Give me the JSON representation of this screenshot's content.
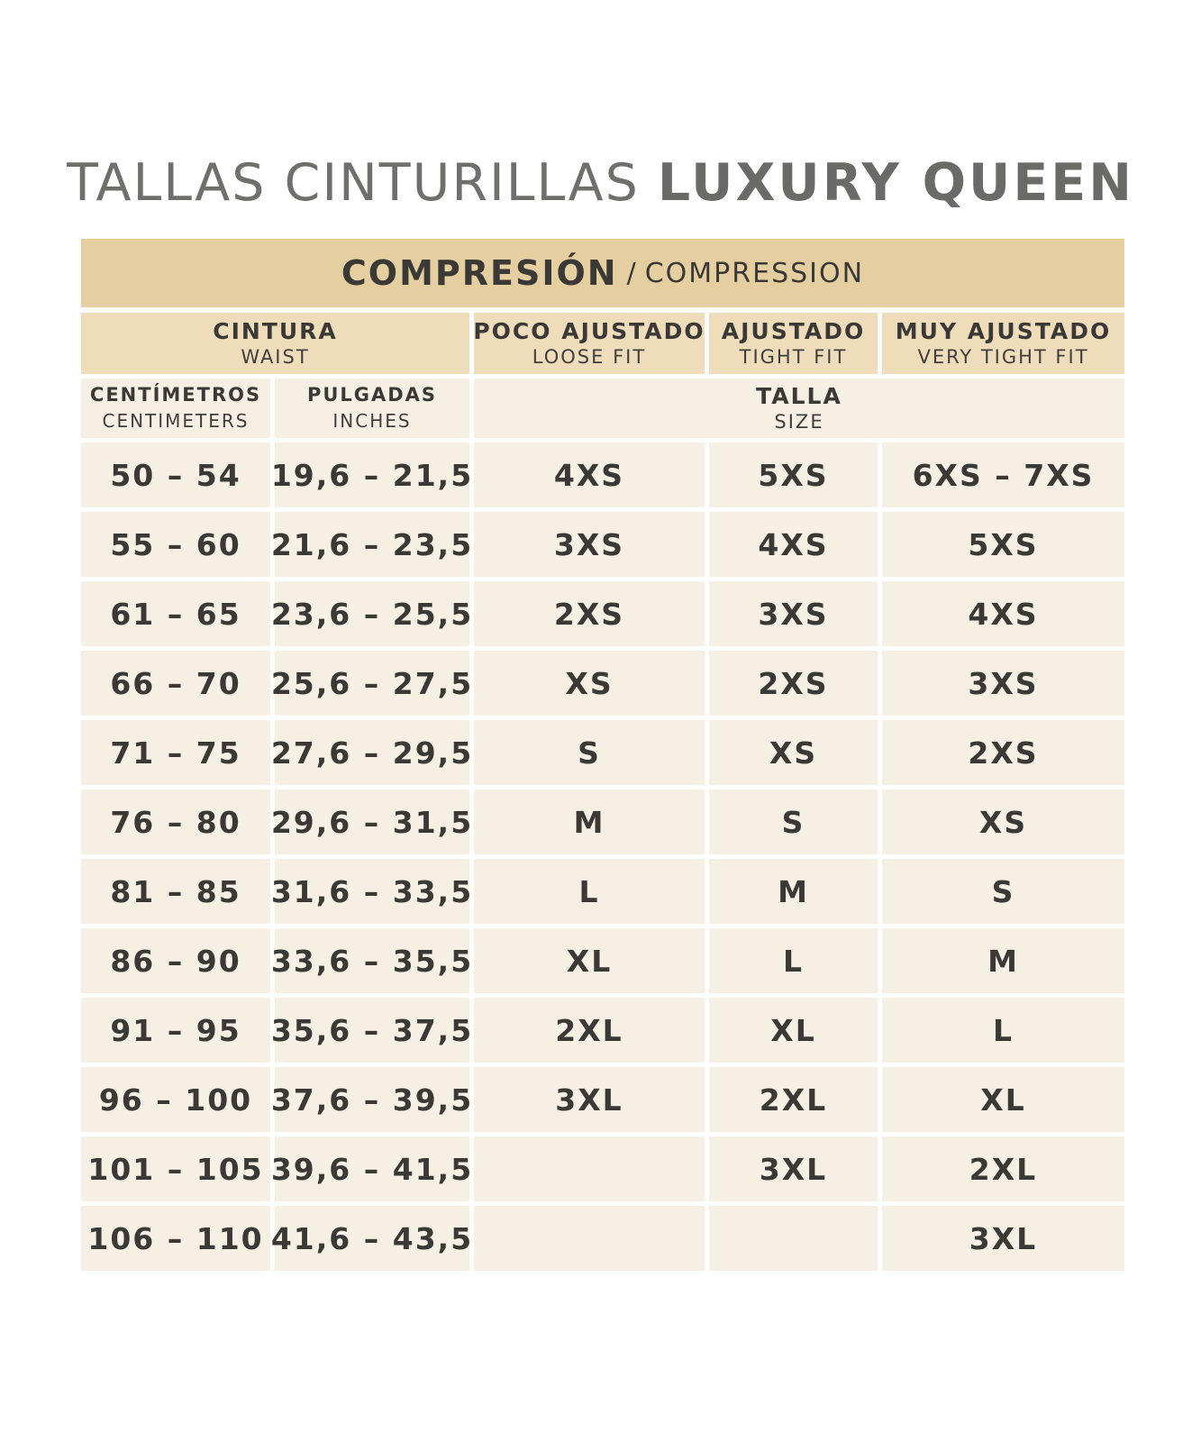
{
  "title": {
    "light": "TALLAS CINTURILLAS ",
    "bold": "LUXURY QUEEN"
  },
  "band": {
    "main": "COMPRESIÓN",
    "separator": "/",
    "secondary": "COMPRESSION"
  },
  "headers": {
    "cintura": {
      "main": "CINTURA",
      "sub": "WAIST"
    },
    "poco": {
      "main": "POCO AJUSTADO",
      "sub": "LOOSE FIT"
    },
    "ajustado": {
      "main": "AJUSTADO",
      "sub": "TIGHT FIT"
    },
    "muy": {
      "main": "MUY AJUSTADO",
      "sub": "VERY TIGHT FIT"
    }
  },
  "subheaders": {
    "cm": {
      "main": "CENTÍMETROS",
      "sub": "CENTIMETERS"
    },
    "in": {
      "main": "PULGADAS",
      "sub": "INCHES"
    },
    "talla": {
      "main": "TALLA",
      "sub": "SIZE"
    }
  },
  "rows": [
    {
      "cm": "50 – 54",
      "in": "19,6 – 21,5",
      "loose": "4XS",
      "tight": "5XS",
      "very": "6XS – 7XS"
    },
    {
      "cm": "55 – 60",
      "in": "21,6 – 23,5",
      "loose": "3XS",
      "tight": "4XS",
      "very": "5XS"
    },
    {
      "cm": "61 – 65",
      "in": "23,6 – 25,5",
      "loose": "2XS",
      "tight": "3XS",
      "very": "4XS"
    },
    {
      "cm": "66 – 70",
      "in": "25,6 – 27,5",
      "loose": "XS",
      "tight": "2XS",
      "very": "3XS"
    },
    {
      "cm": "71 – 75",
      "in": "27,6 – 29,5",
      "loose": "S",
      "tight": "XS",
      "very": "2XS"
    },
    {
      "cm": "76 – 80",
      "in": "29,6 – 31,5",
      "loose": "M",
      "tight": "S",
      "very": "XS"
    },
    {
      "cm": "81 – 85",
      "in": "31,6 – 33,5",
      "loose": "L",
      "tight": "M",
      "very": "S"
    },
    {
      "cm": "86 – 90",
      "in": "33,6 – 35,5",
      "loose": "XL",
      "tight": "L",
      "very": "M"
    },
    {
      "cm": "91 – 95",
      "in": "35,6 – 37,5",
      "loose": "2XL",
      "tight": "XL",
      "very": "L"
    },
    {
      "cm": "96 – 100",
      "in": "37,6 – 39,5",
      "loose": "3XL",
      "tight": "2XL",
      "very": "XL"
    },
    {
      "cm": "101 – 105",
      "in": "39,6 – 41,5",
      "loose": "",
      "tight": "3XL",
      "very": "2XL"
    },
    {
      "cm": "106 – 110",
      "in": "41,6 – 43,5",
      "loose": "",
      "tight": "",
      "very": "3XL"
    }
  ],
  "colors": {
    "band": "#e5cfa0",
    "header": "#efdcba",
    "cell": "#f5efe4",
    "text": "#3a3936",
    "title": "#6f6f6e"
  }
}
